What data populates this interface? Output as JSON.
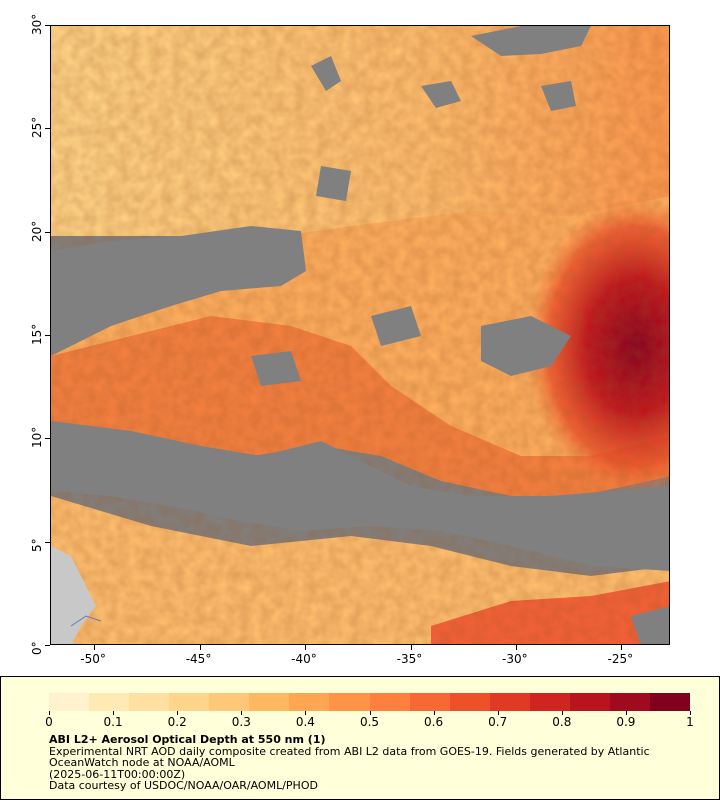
{
  "map": {
    "x_ticks": [
      "-50°",
      "-45°",
      "-40°",
      "-35°",
      "-30°",
      "-25°"
    ],
    "y_ticks": [
      "0°",
      "5°",
      "10°",
      "15°",
      "20°",
      "25°",
      "30°"
    ],
    "lon_range": [
      -52.1,
      -22.7
    ],
    "lat_range": [
      0,
      30
    ],
    "colors": {
      "cloud_gray": "#808080",
      "land_gray": "#c8c8c8",
      "low": "#ffeebe",
      "high": "#800020"
    }
  },
  "legend": {
    "tick_labels": [
      "0",
      "0.1",
      "0.2",
      "0.3",
      "0.4",
      "0.5",
      "0.6",
      "0.7",
      "0.8",
      "0.9",
      "1"
    ],
    "colorbar_colors": [
      "#fff2cc",
      "#ffeab5",
      "#ffe0a0",
      "#ffd58c",
      "#ffc878",
      "#ffb862",
      "#ffa654",
      "#ff9348",
      "#ff7f3e",
      "#f86834",
      "#ee512a",
      "#e03a24",
      "#cf2420",
      "#b9141e",
      "#9f0a1e",
      "#80001e"
    ],
    "title": "ABI L2+ Aerosol Optical Depth at 550 nm (1)",
    "line1": "Experimental NRT AOD daily composite created from ABI L2 data from GOES-19. Fields generated by Atlantic",
    "line2": "OceanWatch node at NOAA/AOML",
    "line3": "(2025-06-11T00:00:00Z)",
    "line4": "Data courtesy of USDOC/NOAA/OAR/AOML/PHOD"
  }
}
